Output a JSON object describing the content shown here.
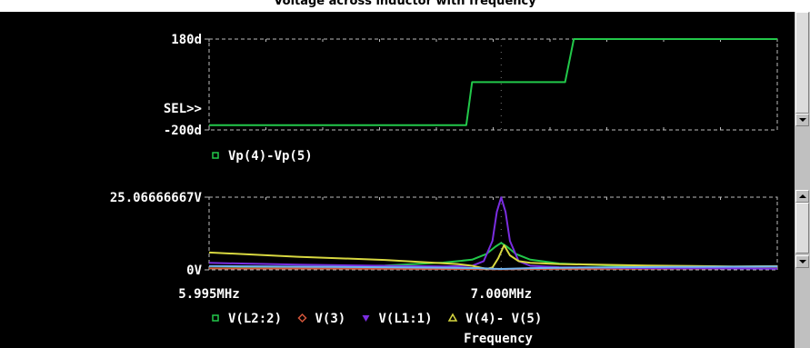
{
  "window": {
    "title": "Voltage across inductor with frequency"
  },
  "chart_data": [
    {
      "type": "line",
      "panel": "phase",
      "ylim": [
        -200,
        180
      ],
      "ytick_labels": [
        "180d",
        "-200d"
      ],
      "selection_marker": "SEL>>",
      "legend_position": "bottom-left",
      "series": [
        {
          "name": "Vp(4)-Vp(5)",
          "color": "#22c84a",
          "x": [
            5.995,
            6.88,
            6.9,
            7.22,
            7.25,
            7.95
          ],
          "y": [
            -180,
            -180,
            0,
            0,
            180,
            180
          ]
        }
      ]
    },
    {
      "type": "line",
      "panel": "magnitude",
      "ylim": [
        0,
        25.06666667
      ],
      "ytick_labels": [
        "25.06666667V",
        "0V"
      ],
      "xlim": [
        5.995,
        7.95
      ],
      "xtick_labels": [
        "5.995MHz",
        "7.000MHz"
      ],
      "xlabel": "Frequency",
      "legend_position": "bottom",
      "series": [
        {
          "name": "V(L2:2)",
          "color": "#22c84a",
          "marker": "square",
          "x": [
            5.995,
            6.3,
            6.6,
            6.8,
            6.9,
            6.95,
            6.98,
            7.0,
            7.02,
            7.05,
            7.1,
            7.2,
            7.5,
            7.95
          ],
          "y": [
            0.5,
            0.8,
            1.5,
            2.5,
            3.5,
            5.5,
            8.0,
            9.3,
            8.0,
            5.5,
            3.5,
            2.2,
            1.0,
            0.5
          ]
        },
        {
          "name": "V(3)",
          "color": "#d2553a",
          "marker": "diamond",
          "x": [
            5.995,
            6.5,
            6.9,
            6.99,
            7.01,
            7.1,
            7.5,
            7.95
          ],
          "y": [
            0.5,
            0.4,
            0.3,
            0.2,
            0.2,
            0.3,
            0.4,
            0.5
          ]
        },
        {
          "name": "V(L1:1)",
          "color": "#7a2de0",
          "marker": "triangle-down",
          "x": [
            5.995,
            6.3,
            6.6,
            6.8,
            6.9,
            6.94,
            6.97,
            6.985,
            7.0,
            7.015,
            7.03,
            7.06,
            7.1,
            7.2,
            7.5,
            7.95
          ],
          "y": [
            2.4,
            1.8,
            1.4,
            1.2,
            1.4,
            3.0,
            10.0,
            20.0,
            25.0,
            20.0,
            10.0,
            3.0,
            1.4,
            0.9,
            0.6,
            0.4
          ]
        },
        {
          "name": "V(4)- V(5)",
          "color": "#d8d840",
          "marker": "triangle-up",
          "x": [
            5.995,
            6.3,
            6.6,
            6.85,
            6.9,
            6.95,
            6.97,
            6.99,
            7.01,
            7.03,
            7.06,
            7.1,
            7.2,
            7.5,
            7.8,
            7.95
          ],
          "y": [
            6.0,
            4.5,
            3.4,
            2.0,
            1.4,
            0.3,
            0.8,
            4.0,
            8.5,
            5.0,
            3.0,
            2.4,
            2.0,
            1.5,
            1.2,
            1.3
          ]
        },
        {
          "name": "",
          "color": "#6fb3f0",
          "x": [
            5.995,
            6.3,
            6.6,
            6.85,
            6.93,
            6.97,
            7.0,
            7.03,
            7.1,
            7.3,
            7.6,
            7.95
          ],
          "y": [
            1.3,
            1.1,
            0.9,
            0.7,
            0.6,
            0.4,
            0.3,
            0.4,
            0.6,
            0.8,
            1.0,
            1.2
          ]
        }
      ]
    }
  ]
}
